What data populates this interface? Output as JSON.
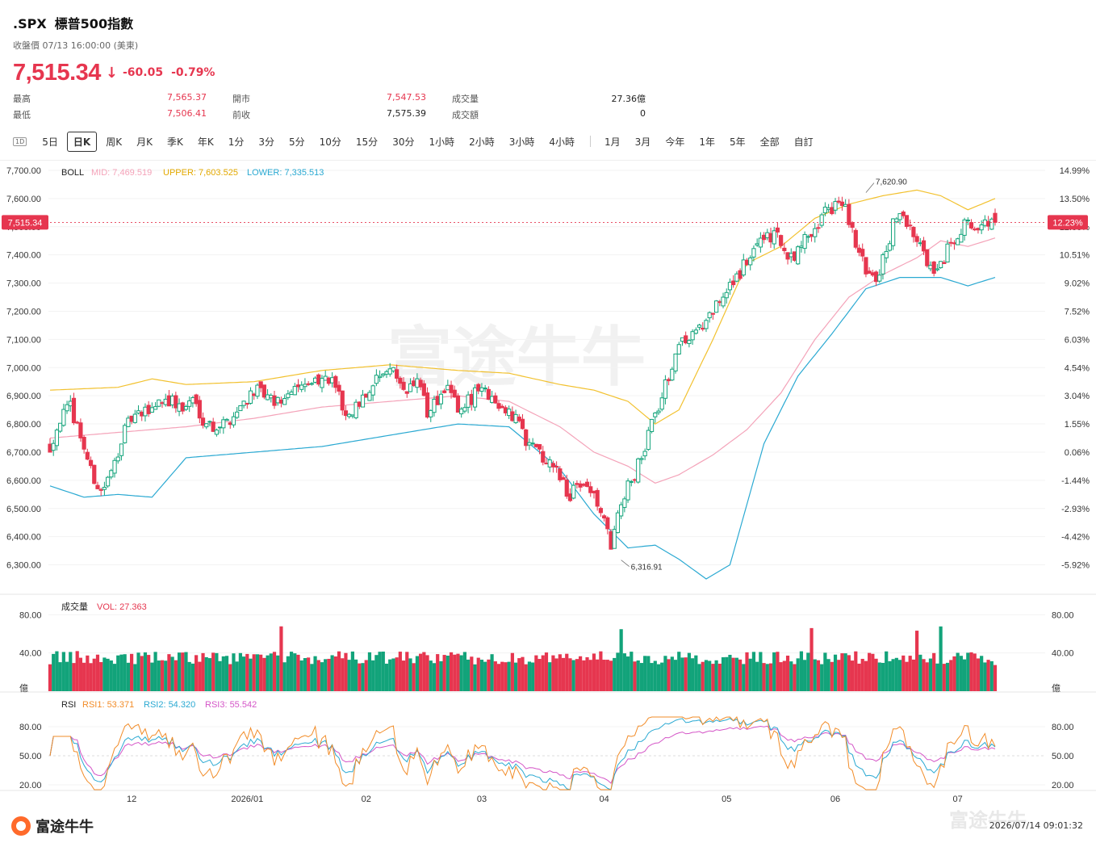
{
  "header": {
    "symbol": ".SPX",
    "name": "標普500指數",
    "close_label": "收盤價 07/13 16:00:00 (美東)",
    "price": "7,515.34",
    "change": "-60.05",
    "change_pct": "-0.79%",
    "arrow": "↓"
  },
  "stats": [
    {
      "label": "最高",
      "value": "7,565.37",
      "color": "red"
    },
    {
      "label": "最低",
      "value": "7,506.41",
      "color": "red"
    },
    {
      "label": "開市",
      "value": "7,547.53",
      "color": "red"
    },
    {
      "label": "前收",
      "value": "7,575.39",
      "color": "blk"
    },
    {
      "label": "成交量",
      "value": "27.36億",
      "color": "blk"
    },
    {
      "label": "成交額",
      "value": "0",
      "color": "blk"
    }
  ],
  "periods": {
    "icon": "1D",
    "group1": [
      "5日",
      "日K",
      "周K",
      "月K",
      "季K",
      "年K",
      "1分",
      "3分",
      "5分",
      "10分",
      "15分",
      "30分",
      "1小時",
      "2小時",
      "3小時",
      "4小時"
    ],
    "group2": [
      "1月",
      "3月",
      "今年",
      "1年",
      "5年",
      "全部",
      "自訂"
    ],
    "active": "日K"
  },
  "watermark": "富途牛牛",
  "footer": {
    "logo": "富途牛牛",
    "timestamp": "2026/07/14 09:01:32"
  },
  "chart_data": [
    {
      "type": "candlestick",
      "indicator_label": "BOLL",
      "legend": [
        "MID: 7,469.519",
        "UPPER: 7,603.525",
        "LOWER: 7,335.513"
      ],
      "ylim": [
        6250,
        7720
      ],
      "yticks": [
        6300,
        6400,
        6500,
        6600,
        6700,
        6800,
        6900,
        7000,
        7100,
        7200,
        7300,
        7400,
        7500,
        7600,
        7700
      ],
      "ytick_labels": [
        "6,300.00",
        "6,400.00",
        "6,500.00",
        "6,600.00",
        "6,700.00",
        "6,800.00",
        "6,900.00",
        "7,000.00",
        "7,100.00",
        "7,200.00",
        "7,300.00",
        "7,400.00",
        "7,500.00",
        "7,600.00",
        "7,700.00"
      ],
      "right_tick_labels": [
        "-5.92%",
        "-4.42%",
        "-2.93%",
        "-1.44%",
        "0.06%",
        "1.55%",
        "3.04%",
        "4.54%",
        "6.03%",
        "7.52%",
        "9.02%",
        "10.51%",
        "12.00%",
        "13.50%",
        "14.99%"
      ],
      "last_price_label": "7,515.34",
      "last_pct_label": "12.23%",
      "high_annotation": "7,620.90",
      "low_annotation": "6,316.91",
      "x_labels": [
        "12",
        "2026/01",
        "02",
        "03",
        "04",
        "05",
        "06",
        "07"
      ],
      "colors": {
        "up": "#12a37a",
        "down": "#e6364f",
        "mid": "#f4a3b9",
        "upper": "#f2c12e",
        "lower": "#2aa9d2"
      },
      "anchors": {
        "close": [
          [
            0,
            6720
          ],
          [
            3,
            6820
          ],
          [
            6,
            6860
          ],
          [
            9,
            6760
          ],
          [
            12,
            6630
          ],
          [
            15,
            6560
          ],
          [
            18,
            6620
          ],
          [
            21,
            6750
          ],
          [
            24,
            6820
          ],
          [
            27,
            6830
          ],
          [
            30,
            6860
          ],
          [
            33,
            6890
          ],
          [
            36,
            6880
          ],
          [
            39,
            6850
          ],
          [
            42,
            6890
          ],
          [
            45,
            6820
          ],
          [
            48,
            6790
          ],
          [
            51,
            6800
          ],
          [
            54,
            6830
          ],
          [
            57,
            6880
          ],
          [
            60,
            6920
          ],
          [
            63,
            6900
          ],
          [
            66,
            6870
          ],
          [
            69,
            6900
          ],
          [
            72,
            6930
          ],
          [
            75,
            6960
          ],
          [
            78,
            6950
          ],
          [
            81,
            6960
          ],
          [
            84,
            6930
          ],
          [
            87,
            6820
          ],
          [
            90,
            6870
          ],
          [
            93,
            6900
          ],
          [
            96,
            6950
          ],
          [
            99,
            6990
          ],
          [
            102,
            6970
          ],
          [
            105,
            6920
          ],
          [
            108,
            6960
          ],
          [
            111,
            6840
          ],
          [
            114,
            6880
          ],
          [
            117,
            6920
          ],
          [
            120,
            6850
          ],
          [
            123,
            6880
          ],
          [
            126,
            6920
          ],
          [
            129,
            6900
          ],
          [
            132,
            6880
          ],
          [
            135,
            6830
          ],
          [
            138,
            6800
          ],
          [
            141,
            6720
          ],
          [
            144,
            6700
          ],
          [
            147,
            6660
          ],
          [
            150,
            6620
          ],
          [
            153,
            6540
          ],
          [
            156,
            6600
          ],
          [
            159,
            6570
          ],
          [
            162,
            6490
          ],
          [
            165,
            6360
          ],
          [
            168,
            6520
          ],
          [
            171,
            6600
          ],
          [
            174,
            6680
          ],
          [
            177,
            6800
          ],
          [
            180,
            6900
          ],
          [
            183,
            7000
          ],
          [
            186,
            7100
          ],
          [
            189,
            7120
          ],
          [
            192,
            7150
          ],
          [
            195,
            7200
          ],
          [
            198,
            7250
          ],
          [
            201,
            7300
          ],
          [
            204,
            7360
          ],
          [
            207,
            7420
          ],
          [
            210,
            7450
          ],
          [
            213,
            7480
          ],
          [
            216,
            7410
          ],
          [
            219,
            7400
          ],
          [
            222,
            7450
          ],
          [
            225,
            7500
          ],
          [
            228,
            7550
          ],
          [
            231,
            7580
          ],
          [
            234,
            7560
          ],
          [
            237,
            7440
          ],
          [
            240,
            7340
          ],
          [
            243,
            7300
          ],
          [
            246,
            7420
          ],
          [
            249,
            7550
          ],
          [
            252,
            7500
          ],
          [
            255,
            7450
          ],
          [
            258,
            7380
          ],
          [
            261,
            7330
          ],
          [
            264,
            7420
          ],
          [
            267,
            7480
          ],
          [
            270,
            7530
          ],
          [
            273,
            7480
          ],
          [
            276,
            7520
          ],
          [
            278,
            7515.34
          ]
        ],
        "mid": [
          [
            0,
            6750
          ],
          [
            20,
            6770
          ],
          [
            40,
            6790
          ],
          [
            60,
            6820
          ],
          [
            80,
            6860
          ],
          [
            100,
            6880
          ],
          [
            120,
            6900
          ],
          [
            135,
            6880
          ],
          [
            150,
            6790
          ],
          [
            160,
            6700
          ],
          [
            170,
            6650
          ],
          [
            178,
            6590
          ],
          [
            185,
            6620
          ],
          [
            195,
            6690
          ],
          [
            205,
            6780
          ],
          [
            215,
            6910
          ],
          [
            225,
            7100
          ],
          [
            235,
            7250
          ],
          [
            245,
            7330
          ],
          [
            255,
            7390
          ],
          [
            262,
            7450
          ],
          [
            270,
            7430
          ],
          [
            278,
            7460
          ]
        ],
        "upper": [
          [
            0,
            6920
          ],
          [
            20,
            6930
          ],
          [
            30,
            6960
          ],
          [
            40,
            6940
          ],
          [
            60,
            6950
          ],
          [
            80,
            6990
          ],
          [
            100,
            7010
          ],
          [
            120,
            6990
          ],
          [
            135,
            6980
          ],
          [
            150,
            6940
          ],
          [
            160,
            6920
          ],
          [
            170,
            6880
          ],
          [
            178,
            6800
          ],
          [
            185,
            6850
          ],
          [
            195,
            7100
          ],
          [
            205,
            7370
          ],
          [
            215,
            7430
          ],
          [
            225,
            7530
          ],
          [
            235,
            7580
          ],
          [
            245,
            7610
          ],
          [
            255,
            7630
          ],
          [
            262,
            7610
          ],
          [
            270,
            7560
          ],
          [
            278,
            7600
          ]
        ],
        "lower": [
          [
            0,
            6580
          ],
          [
            10,
            6540
          ],
          [
            20,
            6550
          ],
          [
            30,
            6540
          ],
          [
            40,
            6680
          ],
          [
            60,
            6700
          ],
          [
            80,
            6720
          ],
          [
            100,
            6760
          ],
          [
            120,
            6800
          ],
          [
            135,
            6790
          ],
          [
            150,
            6640
          ],
          [
            160,
            6480
          ],
          [
            170,
            6360
          ],
          [
            178,
            6370
          ],
          [
            185,
            6320
          ],
          [
            193,
            6250
          ],
          [
            200,
            6300
          ],
          [
            210,
            6730
          ],
          [
            220,
            6970
          ],
          [
            230,
            7120
          ],
          [
            240,
            7280
          ],
          [
            250,
            7320
          ],
          [
            262,
            7320
          ],
          [
            270,
            7290
          ],
          [
            278,
            7320
          ]
        ]
      },
      "overbar_labels": [
        {
          "text": "12",
          "i": 24
        },
        {
          "text": "2026/01",
          "i": 58
        },
        {
          "text": "02",
          "i": 93
        },
        {
          "text": "03",
          "i": 127
        },
        {
          "text": "04",
          "i": 163
        },
        {
          "text": "05",
          "i": 199
        },
        {
          "text": "06",
          "i": 231
        },
        {
          "text": "07",
          "i": 267
        }
      ]
    },
    {
      "type": "bar",
      "label": "成交量",
      "legend": "VOL: 27.363",
      "ylim": [
        0,
        80
      ],
      "ytick_labels": [
        "80.00",
        "40.00",
        "億"
      ],
      "last_value": 27.363
    },
    {
      "type": "line",
      "label": "RSI",
      "legend": [
        "RSI1: 53.371",
        "RSI2: 54.320",
        "RSI3: 55.542"
      ],
      "ylim": [
        15,
        90
      ],
      "ytick_labels": [
        "80.00",
        "50.00",
        "20.00"
      ],
      "colors": {
        "rsi1": "#f28c28",
        "rsi2": "#2aa9d2",
        "rsi3": "#d455c7"
      }
    }
  ]
}
